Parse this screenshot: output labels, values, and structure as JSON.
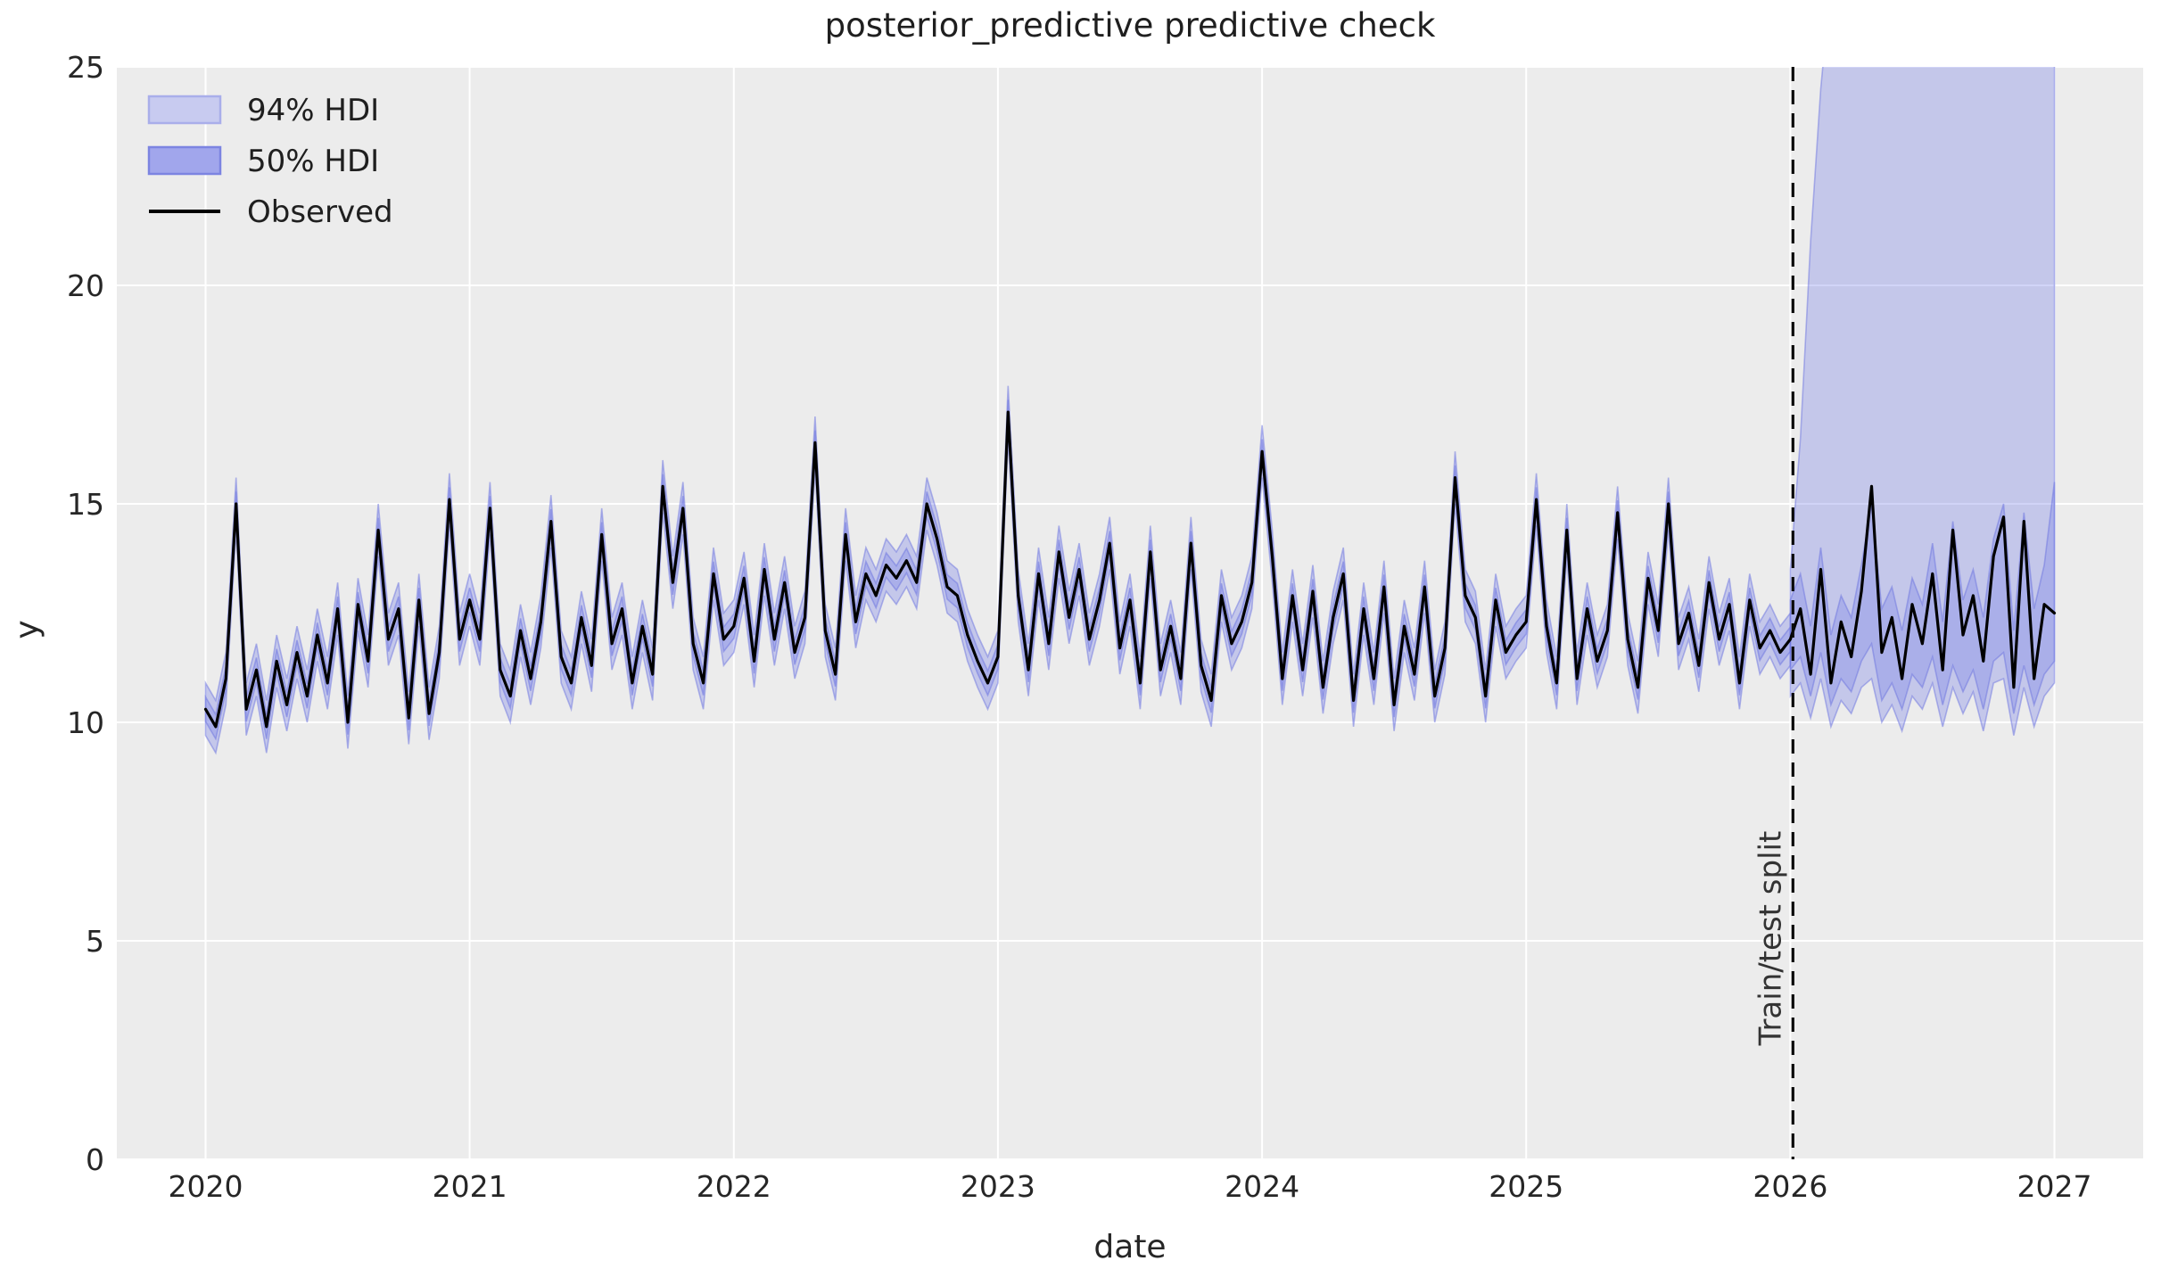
{
  "chart_data": {
    "type": "line",
    "title": "posterior_predictive predictive check",
    "xlabel": "date",
    "ylabel": "y",
    "xlim": [
      2019.664,
      2027.336
    ],
    "ylim": [
      0,
      25
    ],
    "xticks": [
      2020,
      2021,
      2022,
      2023,
      2024,
      2025,
      2026,
      2027
    ],
    "yticks": [
      0,
      5,
      10,
      15,
      20,
      25
    ],
    "grid": true,
    "legend_position": "upper left",
    "legend_entries": [
      "94% HDI",
      "50% HDI",
      "Observed"
    ],
    "split_label": "Train/test split",
    "train_test_split_x": 2026.01,
    "colors": {
      "plot_background": "#ececec",
      "gridline": "#ffffff",
      "hdi_band_fill": "#7b84e8",
      "hdi_band_edge": "#6b74e0",
      "observed_line": "#000000",
      "split_line": "#0a0a0a"
    },
    "series": {
      "x_start": 2020.0,
      "x_step": 0.0384615,
      "observed": [
        10.3,
        9.9,
        11.0,
        15.0,
        10.3,
        11.2,
        9.9,
        11.4,
        10.4,
        11.6,
        10.6,
        12.0,
        10.9,
        12.6,
        10.0,
        12.7,
        11.4,
        14.4,
        11.9,
        12.6,
        10.1,
        12.8,
        10.2,
        11.6,
        15.1,
        11.9,
        12.8,
        11.9,
        14.9,
        11.2,
        10.6,
        12.1,
        11.0,
        12.3,
        14.6,
        11.5,
        10.9,
        12.4,
        11.3,
        14.3,
        11.8,
        12.6,
        10.9,
        12.2,
        11.1,
        15.4,
        13.2,
        14.9,
        11.8,
        10.9,
        13.4,
        11.9,
        12.2,
        13.3,
        11.4,
        13.5,
        11.9,
        13.2,
        11.6,
        12.4,
        16.4,
        12.1,
        11.1,
        14.3,
        12.3,
        13.4,
        12.9,
        13.6,
        13.3,
        13.7,
        13.2,
        15.0,
        14.2,
        13.1,
        12.9,
        12.0,
        11.4,
        10.9,
        11.5,
        17.1,
        12.9,
        11.2,
        13.4,
        11.8,
        13.9,
        12.4,
        13.5,
        11.9,
        12.8,
        14.1,
        11.7,
        12.8,
        10.9,
        13.9,
        11.2,
        12.2,
        11.0,
        14.1,
        11.3,
        10.5,
        12.9,
        11.8,
        12.3,
        13.2,
        16.2,
        13.8,
        11.0,
        12.9,
        11.2,
        13.0,
        10.8,
        12.4,
        13.4,
        10.5,
        12.6,
        11.0,
        13.1,
        10.4,
        12.2,
        11.1,
        13.1,
        10.6,
        11.7,
        15.6,
        12.9,
        12.4,
        10.6,
        12.8,
        11.6,
        12.0,
        12.3,
        15.1,
        12.2,
        10.9,
        14.4,
        11.0,
        12.6,
        11.4,
        12.1,
        14.8,
        11.9,
        10.8,
        13.3,
        12.1,
        15.0,
        11.8,
        12.5,
        11.3,
        13.2,
        11.9,
        12.7,
        10.9,
        12.8,
        11.7,
        12.1,
        11.6,
        11.9,
        12.6,
        11.1,
        13.5,
        10.9,
        12.3,
        11.5,
        13.0,
        15.4,
        11.6,
        12.4,
        11.0,
        12.7,
        11.8,
        13.4,
        11.2,
        14.4,
        12.0,
        12.9,
        11.4,
        13.8,
        14.7,
        10.8,
        14.6,
        11.0,
        12.7,
        12.5
      ],
      "hdi94_halfwidth_train": 0.6,
      "hdi50_halfwidth_train": 0.28,
      "forecast_start_index": 156,
      "hdi94_lo_test": [
        10.6,
        10.9,
        10.1,
        11.0,
        9.9,
        10.5,
        10.2,
        10.8,
        11.0,
        10.0,
        10.4,
        9.8,
        10.6,
        10.3,
        10.9,
        9.9,
        10.8,
        10.2,
        10.7,
        9.8,
        10.9,
        11.0,
        9.7,
        10.8,
        9.9,
        10.6,
        10.9
      ],
      "hdi94_hi_test": [
        13.5,
        16.5,
        21,
        24.5,
        27,
        30,
        34,
        38,
        42,
        46,
        50,
        54,
        57,
        60,
        60,
        60,
        60,
        60,
        60,
        60,
        60,
        60,
        60,
        60,
        60,
        60,
        42
      ],
      "hdi50_lo_test": [
        11.2,
        11.5,
        10.6,
        11.6,
        10.4,
        11.0,
        10.7,
        11.4,
        11.8,
        10.5,
        10.9,
        10.3,
        11.1,
        10.8,
        11.5,
        10.4,
        11.3,
        10.7,
        11.2,
        10.3,
        11.4,
        11.6,
        10.2,
        11.3,
        10.4,
        11.1,
        11.4
      ],
      "hdi50_hi_test": [
        12.8,
        13.4,
        12.2,
        14.0,
        12.0,
        12.9,
        12.4,
        13.6,
        15.0,
        12.6,
        13.1,
        12.1,
        13.3,
        12.7,
        14.1,
        12.3,
        14.6,
        12.8,
        13.5,
        12.4,
        14.2,
        15.0,
        12.1,
        14.8,
        12.6,
        13.6,
        15.5
      ]
    }
  }
}
